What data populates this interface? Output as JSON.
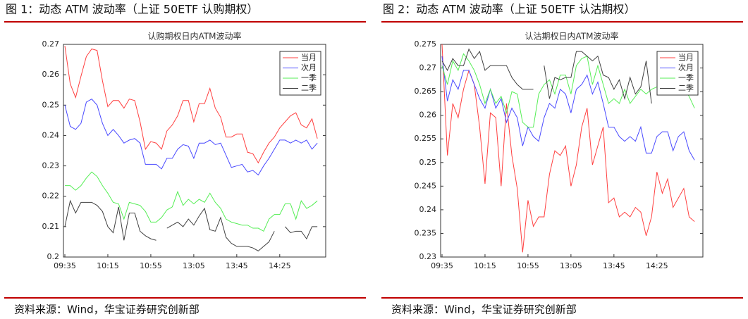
{
  "chart_data": [
    {
      "type": "line",
      "figure_title": "图 1：动态 ATM 波动率（上证 50ETF 认购期权）",
      "title": "认购期权日内ATM波动率",
      "source": "资料来源：Wind，华宝证券研究创新部",
      "categories": [
        "09:35",
        null,
        null,
        null,
        null,
        null,
        null,
        null,
        "10:15",
        null,
        null,
        null,
        null,
        null,
        null,
        null,
        "10:55",
        null,
        null,
        null,
        null,
        null,
        null,
        null,
        "13:05",
        null,
        null,
        null,
        null,
        null,
        null,
        null,
        "13:45",
        null,
        null,
        null,
        null,
        null,
        null,
        null,
        "14:25",
        null,
        null,
        null,
        null,
        null,
        null,
        null
      ],
      "ylim": [
        0.2,
        0.27
      ],
      "yticks": [
        0.2,
        0.21,
        0.22,
        0.23,
        0.24,
        0.25,
        0.26,
        0.27
      ],
      "grid": false,
      "legend": "top-right",
      "series": [
        {
          "name": "当月",
          "color": "#ff4040",
          "values": [
            0.2695,
            0.257,
            0.2525,
            0.2595,
            0.266,
            0.2685,
            0.268,
            0.258,
            0.2495,
            0.2515,
            0.2515,
            0.249,
            0.252,
            0.2515,
            0.2445,
            0.2355,
            0.238,
            0.2375,
            0.2355,
            0.2415,
            0.2435,
            0.2465,
            0.2515,
            0.2515,
            0.2445,
            0.2505,
            0.2505,
            0.2555,
            0.249,
            0.246,
            0.2395,
            0.2395,
            0.2405,
            0.2405,
            0.2345,
            0.234,
            0.231,
            0.2345,
            0.2375,
            0.2395,
            0.2425,
            0.2445,
            0.2465,
            0.2475,
            0.2435,
            0.2425,
            0.2455,
            0.239
          ]
        },
        {
          "name": "次月",
          "color": "#4a4aff",
          "values": [
            0.25,
            0.243,
            0.242,
            0.244,
            0.251,
            0.252,
            0.25,
            0.244,
            0.24,
            0.242,
            0.24,
            0.2375,
            0.2385,
            0.239,
            0.2375,
            0.2305,
            0.2305,
            0.2305,
            0.229,
            0.2325,
            0.2325,
            0.2355,
            0.237,
            0.2365,
            0.2325,
            0.2375,
            0.2375,
            0.2385,
            0.237,
            0.2375,
            0.2335,
            0.2295,
            0.23,
            0.2305,
            0.228,
            0.2285,
            0.227,
            0.23,
            0.2325,
            0.2355,
            0.2385,
            0.2385,
            0.2375,
            0.2385,
            0.2375,
            0.2385,
            0.2355,
            0.2375
          ]
        },
        {
          "name": "一季",
          "color": "#55ee55",
          "values": [
            0.2235,
            0.2235,
            0.222,
            0.2235,
            0.226,
            0.228,
            0.2265,
            0.2235,
            0.221,
            0.218,
            0.2175,
            0.2125,
            0.218,
            0.2175,
            0.217,
            0.215,
            0.2115,
            0.2115,
            0.213,
            0.2155,
            0.2165,
            0.2215,
            0.217,
            0.219,
            0.2175,
            0.219,
            0.218,
            0.221,
            0.218,
            0.216,
            0.2125,
            0.2115,
            0.211,
            0.2105,
            0.2105,
            0.2095,
            0.2095,
            0.2085,
            0.2125,
            0.214,
            0.214,
            0.2175,
            0.2175,
            0.2125,
            0.2185,
            0.216,
            0.217,
            0.2185
          ]
        },
        {
          "name": "二季",
          "color": "#404040",
          "values": [
            0.21,
            0.2185,
            0.2145,
            0.218,
            0.218,
            0.218,
            0.217,
            0.215,
            0.21,
            0.208,
            0.2165,
            0.2055,
            0.2145,
            0.2145,
            0.2085,
            0.207,
            0.206,
            0.2055,
            null,
            0.2095,
            0.2105,
            0.2115,
            0.21,
            0.2125,
            0.2105,
            0.2135,
            0.216,
            0.209,
            0.2085,
            0.213,
            0.2065,
            0.2045,
            0.2035,
            0.2035,
            0.2035,
            0.203,
            0.202,
            0.2035,
            0.205,
            0.2085,
            null,
            0.21,
            0.208,
            0.2085,
            0.2085,
            0.206,
            0.21,
            0.21
          ]
        }
      ]
    },
    {
      "type": "line",
      "figure_title": "图 2：动态 ATM 波动率（上证 50ETF 认沽期权）",
      "title": "认沽期权日内ATM波动率",
      "source": "资料来源：Wind，华宝证券研究创新部",
      "categories": [
        "09:35",
        null,
        null,
        null,
        null,
        null,
        null,
        null,
        "10:15",
        null,
        null,
        null,
        null,
        null,
        null,
        null,
        "10:55",
        null,
        null,
        null,
        null,
        null,
        null,
        null,
        "13:05",
        null,
        null,
        null,
        null,
        null,
        null,
        null,
        "13:45",
        null,
        null,
        null,
        null,
        null,
        null,
        null,
        "14:25",
        null,
        null,
        null,
        null,
        null,
        null,
        null
      ],
      "ylim": [
        0.23,
        0.275
      ],
      "yticks": [
        0.23,
        0.235,
        0.24,
        0.245,
        0.25,
        0.255,
        0.26,
        0.265,
        0.27,
        0.275
      ],
      "grid": false,
      "legend": "top-right",
      "series": [
        {
          "name": "当月",
          "color": "#ff4040",
          "values": [
            0.275,
            0.2515,
            0.2625,
            0.2595,
            0.2655,
            0.2695,
            0.2665,
            0.2575,
            0.2455,
            0.2605,
            0.2595,
            0.245,
            0.2625,
            0.2515,
            0.2445,
            0.231,
            0.242,
            0.2365,
            0.2385,
            0.2385,
            0.2475,
            0.2525,
            0.2515,
            0.2535,
            0.245,
            0.2495,
            0.2575,
            0.2615,
            0.2495,
            0.2535,
            0.2575,
            0.2415,
            0.2425,
            0.2385,
            0.2395,
            0.2385,
            0.2405,
            0.2395,
            0.2345,
            0.2385,
            0.248,
            0.2435,
            0.2465,
            0.2405,
            0.2425,
            0.2445,
            0.2385,
            0.2375
          ]
        },
        {
          "name": "次月",
          "color": "#4a4aff",
          "values": [
            0.2725,
            0.263,
            0.2675,
            0.2655,
            0.2695,
            0.2695,
            0.2665,
            0.2635,
            0.2615,
            0.2655,
            0.2615,
            0.2635,
            0.2585,
            0.2615,
            0.2595,
            0.2535,
            0.2575,
            0.2555,
            0.2545,
            0.2595,
            0.2625,
            0.2615,
            0.2655,
            0.2645,
            0.2605,
            0.2655,
            0.2665,
            0.2685,
            0.2645,
            0.267,
            0.2625,
            0.2575,
            0.2575,
            0.2555,
            0.2545,
            0.2555,
            0.2545,
            0.2575,
            0.252,
            0.252,
            0.2555,
            0.2565,
            0.2565,
            0.2525,
            0.2555,
            0.2565,
            0.2525,
            0.2505
          ]
        },
        {
          "name": "一季",
          "color": "#55ee55",
          "values": [
            0.2705,
            0.2665,
            0.2715,
            0.2695,
            0.273,
            0.2715,
            0.2695,
            0.2665,
            0.2625,
            0.2655,
            0.2625,
            0.264,
            0.2605,
            0.265,
            0.2645,
            0.2585,
            0.2575,
            0.2575,
            0.2645,
            0.2665,
            0.2675,
            0.2645,
            0.2685,
            0.2685,
            0.2645,
            0.2705,
            0.272,
            0.2725,
            0.2665,
            0.2705,
            0.2665,
            0.2625,
            0.2635,
            0.2625,
            0.2655,
            0.2625,
            0.264,
            0.2655,
            0.2645,
            0.2655,
            0.266,
            0.268,
            0.267,
            0.2655,
            0.267,
            0.2655,
            0.264,
            0.2615
          ]
        },
        {
          "name": "二季",
          "color": "#404040",
          "values": [
            0.2715,
            0.2695,
            0.272,
            0.2705,
            0.2705,
            0.274,
            0.272,
            0.2735,
            0.2695,
            0.2705,
            0.2705,
            0.2705,
            0.2705,
            0.268,
            0.2665,
            0.2655,
            0.2655,
            0.2655,
            null,
            0.2705,
            0.2635,
            0.268,
            0.2675,
            0.268,
            0.268,
            0.2735,
            0.2735,
            0.2725,
            0.2715,
            0.2725,
            0.2685,
            0.268,
            0.2655,
            0.2675,
            0.2635,
            0.268,
            0.2645,
            0.266,
            0.2715,
            0.2625,
            null,
            null,
            null,
            null,
            null,
            null,
            null,
            null
          ]
        }
      ]
    }
  ]
}
